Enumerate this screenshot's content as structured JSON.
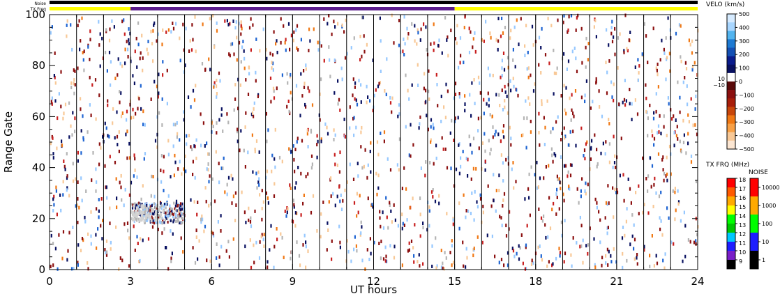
{
  "chart_data": {
    "type": "heatmap",
    "xlabel": "UT hours",
    "ylabel": "Range Gate",
    "xlim": [
      0,
      24
    ],
    "ylim": [
      0,
      100
    ],
    "x_ticks": [
      0,
      3,
      6,
      9,
      12,
      15,
      18,
      21,
      24
    ],
    "y_ticks": [
      0,
      20,
      40,
      60,
      80,
      100
    ],
    "x_tick_labels": [
      "0",
      "3",
      "6",
      "9",
      "12",
      "15",
      "18",
      "21",
      "24"
    ],
    "y_tick_labels": [
      "0",
      "20",
      "40",
      "60",
      "80",
      "100"
    ],
    "scan_boundaries_ut": [
      1,
      2,
      3,
      4,
      5,
      6,
      7,
      8,
      9,
      10,
      11,
      12,
      13,
      14,
      15,
      16,
      17,
      18,
      19,
      20,
      21,
      22,
      23
    ],
    "status_bars": {
      "noise_label": "Noise",
      "txfreq_label": "TX Freq",
      "noise_segments": [
        {
          "start": 0,
          "end": 24,
          "color": "#000000"
        }
      ],
      "txfreq_segments": [
        {
          "start": 0,
          "end": 3,
          "color": "#ffff00"
        },
        {
          "start": 3,
          "end": 15,
          "color": "#5a1a8c"
        },
        {
          "start": 15,
          "end": 24,
          "color": "#ffff00"
        }
      ]
    },
    "velocity_scale": {
      "title": "VELO (km/s)",
      "min": -500,
      "max": 500,
      "tick_values": [
        500,
        400,
        300,
        200,
        100,
        0,
        -100,
        -200,
        -300,
        -400,
        -500
      ],
      "tick_labels": [
        "500",
        "400",
        "300",
        "200",
        "100",
        "0",
        "−100",
        "−200",
        "−300",
        "−400",
        "−500"
      ],
      "side_labels": [
        "10",
        "−10"
      ],
      "colors_top_to_bottom": [
        "#d6ebff",
        "#a8d6ff",
        "#52b4ef",
        "#1e7ad2",
        "#1450b4",
        "#0a1c8c",
        "#081060",
        "#ffffff",
        "#5a0a0a",
        "#8c1010",
        "#a81e0a",
        "#c8460a",
        "#f07814",
        "#f8a046",
        "#f8c896",
        "#fce6d2"
      ]
    },
    "txfreq_scale": {
      "title": "TX FRQ (MHz)",
      "tick_labels": [
        "18",
        "17",
        "16",
        "15",
        "14",
        "13",
        "12",
        "11",
        "10",
        "9"
      ],
      "colors_top_to_bottom": [
        "#ff0000",
        "#ff5a00",
        "#ffaa00",
        "#ffff00",
        "#00ff00",
        "#00c800",
        "#00c8ff",
        "#1e1eff",
        "#7a1ec8",
        "#000000"
      ]
    },
    "noise_scale": {
      "title": "NOISE",
      "tick_labels": [
        "10000",
        "1000",
        "100",
        "10",
        "1"
      ],
      "colors_top_to_bottom": [
        "#ff0000",
        "#ffaa00",
        "#00ff00",
        "#1e1eff",
        "#000000"
      ]
    },
    "categories_palette": {
      "dark_red": "#8c1010",
      "red": "#c81e1e",
      "orange": "#f07814",
      "light_orange": "#f8c896",
      "navy": "#081060",
      "blue": "#1e64d2",
      "light_blue": "#96c8ff",
      "grey": "#b4b4b4"
    }
  }
}
